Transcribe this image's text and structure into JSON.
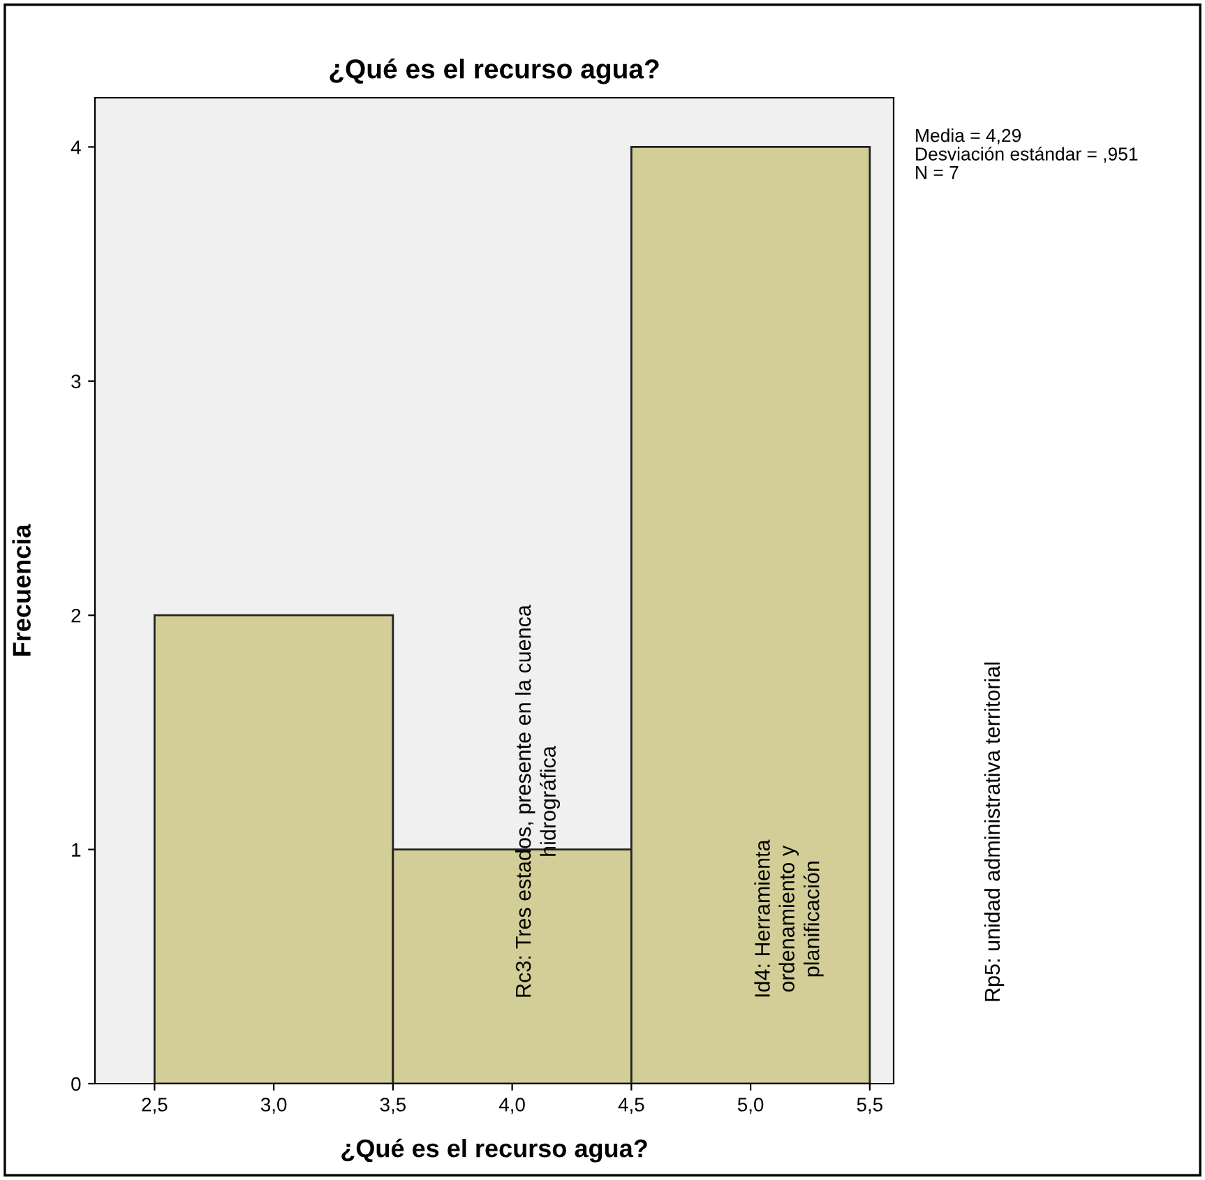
{
  "chart_data": {
    "type": "histogram",
    "title": "¿Qué es el recurso agua?",
    "xlabel": "¿Qué es el recurso agua?",
    "ylabel": "Frecuencia",
    "bins": [
      2.5,
      3.5,
      4.5,
      5.5
    ],
    "values": [
      2,
      1,
      4
    ],
    "color": "#d3ce97",
    "xlim": [
      2.25,
      5.6
    ],
    "ylim": [
      0,
      4.21
    ],
    "xticks": [
      {
        "value": 2.5,
        "label": "2,5"
      },
      {
        "value": 3.0,
        "label": "3,0"
      },
      {
        "value": 3.5,
        "label": "3,5"
      },
      {
        "value": 4.0,
        "label": "4,0"
      },
      {
        "value": 4.5,
        "label": "4,5"
      },
      {
        "value": 5.0,
        "label": "5,0"
      },
      {
        "value": 5.5,
        "label": "5,5"
      }
    ],
    "yticks": [
      0,
      1,
      2,
      3,
      4
    ],
    "grid": false,
    "annotations": [
      "Media = 4,29\nDesviación estándar = ,951\nN = 7",
      "Rc3: Tres estados, presente en la cuenca\nhidrográfica",
      "Id4: Herramienta\nordenamiento y\nplanificación",
      "Rp5: unidad administrativa territorial"
    ]
  }
}
